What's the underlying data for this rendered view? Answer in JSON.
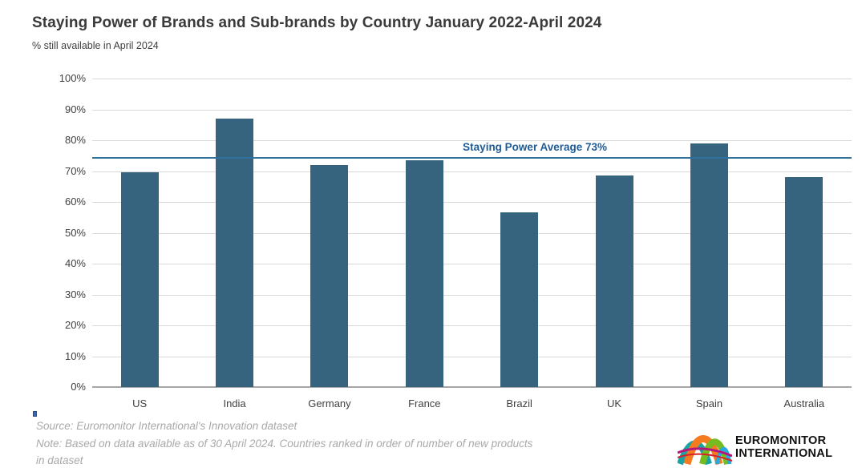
{
  "title": "Staying Power of Brands and Sub-brands by Country January 2022-April 2024",
  "subtitle": "% still available in April 2024",
  "chart_data": {
    "type": "bar",
    "categories": [
      "US",
      "India",
      "Germany",
      "France",
      "Brazil",
      "UK",
      "Spain",
      "Australia"
    ],
    "values": [
      69.5,
      87,
      72,
      73.5,
      56.5,
      68.5,
      79,
      68
    ],
    "title": "Staying Power of Brands and Sub-brands by Country January 2022-April 2024",
    "xlabel": "",
    "ylabel": "% still available in April 2024",
    "ylim": [
      0,
      100
    ],
    "y_ticks": [
      "100%",
      "90%",
      "80%",
      "70%",
      "60%",
      "50%",
      "40%",
      "30%",
      "20%",
      "10%",
      "0%"
    ],
    "grid": true,
    "legend": "none",
    "average_line": {
      "label": "Staying Power Average 73%",
      "value": 73,
      "display_percent": 74.5
    },
    "colors": {
      "bar": "#36647E",
      "average_line": "#31719E",
      "average_label": "#1F5C96",
      "gridline": "#D9D9D9",
      "axis": "#A6A6A6"
    }
  },
  "footer": {
    "source": "Source: Euromonitor International's Innovation dataset",
    "note_line1": "Note: Based on data available as of 30 April 2024. Countries ranked in order of number of new products",
    "note_line2": "in dataset"
  },
  "logo": {
    "line1": "EUROMONITOR",
    "line2": "INTERNATIONAL"
  }
}
